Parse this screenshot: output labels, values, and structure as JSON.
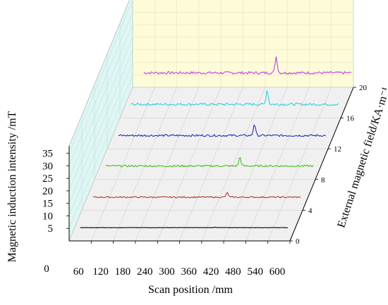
{
  "chart_data": {
    "type": "line",
    "title": "",
    "xlabel": "Scan position /mm",
    "ylabel": "Magnetic induction intensity /mT",
    "zlabel": "External magnetic field/KA·m⁻¹",
    "x_ticks": [
      "60",
      "120",
      "180",
      "240",
      "300",
      "360",
      "420",
      "480",
      "540",
      "600"
    ],
    "x_origin_label": "0",
    "xlim": [
      0,
      600
    ],
    "y_ticks": [
      "5",
      "10",
      "15",
      "20",
      "25",
      "30",
      "35"
    ],
    "ylim": [
      0,
      38
    ],
    "z_ticks": [
      "0",
      "4",
      "8",
      "12",
      "16",
      "20"
    ],
    "zlim": [
      0,
      20
    ],
    "grid": true,
    "legend": "none",
    "series": [
      {
        "z": 0,
        "color": "#000000",
        "baseline": 5.3,
        "peak_x": 395,
        "peak_height": 0.2,
        "noise": 0.05
      },
      {
        "z": 4,
        "color": "#b03a2e",
        "baseline": 5.2,
        "peak_x": 395,
        "peak_height": 1.8,
        "noise": 0.25
      },
      {
        "z": 8,
        "color": "#3fbf1f",
        "baseline": 5.4,
        "peak_x": 395,
        "peak_height": 3.5,
        "noise": 0.35
      },
      {
        "z": 12,
        "color": "#1f2fbf",
        "baseline": 5.3,
        "peak_x": 400,
        "peak_height": 4.6,
        "noise": 0.4
      },
      {
        "z": 16,
        "color": "#2fd0e0",
        "baseline": 5.5,
        "peak_x": 400,
        "peak_height": 5.8,
        "noise": 0.5
      },
      {
        "z": 20,
        "color": "#c040e0",
        "baseline": 5.8,
        "peak_x": 390,
        "peak_height": 6.5,
        "noise": 0.5
      }
    ]
  }
}
